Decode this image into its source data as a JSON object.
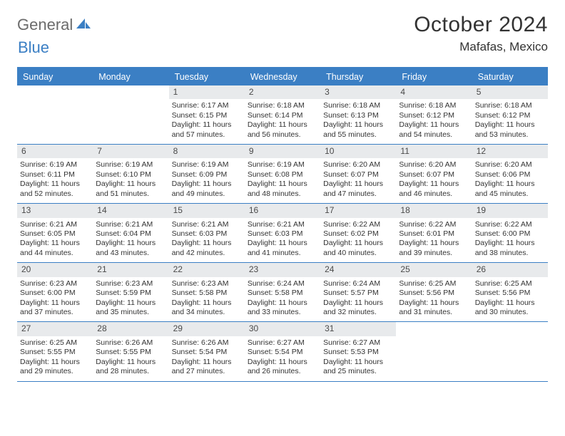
{
  "logo": {
    "part1": "General",
    "part2": "Blue"
  },
  "title": "October 2024",
  "location": "Mafafas, Mexico",
  "day_names": [
    "Sunday",
    "Monday",
    "Tuesday",
    "Wednesday",
    "Thursday",
    "Friday",
    "Saturday"
  ],
  "colors": {
    "accent": "#3b7fc4",
    "header_bg": "#3b7fc4",
    "daynum_bg": "#e8eaec",
    "text": "#333333",
    "logo_gray": "#6b6b6b"
  },
  "weeks": [
    [
      {
        "empty": true
      },
      {
        "empty": true
      },
      {
        "num": "1",
        "sunrise": "Sunrise: 6:17 AM",
        "sunset": "Sunset: 6:15 PM",
        "day1": "Daylight: 11 hours",
        "day2": "and 57 minutes."
      },
      {
        "num": "2",
        "sunrise": "Sunrise: 6:18 AM",
        "sunset": "Sunset: 6:14 PM",
        "day1": "Daylight: 11 hours",
        "day2": "and 56 minutes."
      },
      {
        "num": "3",
        "sunrise": "Sunrise: 6:18 AM",
        "sunset": "Sunset: 6:13 PM",
        "day1": "Daylight: 11 hours",
        "day2": "and 55 minutes."
      },
      {
        "num": "4",
        "sunrise": "Sunrise: 6:18 AM",
        "sunset": "Sunset: 6:12 PM",
        "day1": "Daylight: 11 hours",
        "day2": "and 54 minutes."
      },
      {
        "num": "5",
        "sunrise": "Sunrise: 6:18 AM",
        "sunset": "Sunset: 6:12 PM",
        "day1": "Daylight: 11 hours",
        "day2": "and 53 minutes."
      }
    ],
    [
      {
        "num": "6",
        "sunrise": "Sunrise: 6:19 AM",
        "sunset": "Sunset: 6:11 PM",
        "day1": "Daylight: 11 hours",
        "day2": "and 52 minutes."
      },
      {
        "num": "7",
        "sunrise": "Sunrise: 6:19 AM",
        "sunset": "Sunset: 6:10 PM",
        "day1": "Daylight: 11 hours",
        "day2": "and 51 minutes."
      },
      {
        "num": "8",
        "sunrise": "Sunrise: 6:19 AM",
        "sunset": "Sunset: 6:09 PM",
        "day1": "Daylight: 11 hours",
        "day2": "and 49 minutes."
      },
      {
        "num": "9",
        "sunrise": "Sunrise: 6:19 AM",
        "sunset": "Sunset: 6:08 PM",
        "day1": "Daylight: 11 hours",
        "day2": "and 48 minutes."
      },
      {
        "num": "10",
        "sunrise": "Sunrise: 6:20 AM",
        "sunset": "Sunset: 6:07 PM",
        "day1": "Daylight: 11 hours",
        "day2": "and 47 minutes."
      },
      {
        "num": "11",
        "sunrise": "Sunrise: 6:20 AM",
        "sunset": "Sunset: 6:07 PM",
        "day1": "Daylight: 11 hours",
        "day2": "and 46 minutes."
      },
      {
        "num": "12",
        "sunrise": "Sunrise: 6:20 AM",
        "sunset": "Sunset: 6:06 PM",
        "day1": "Daylight: 11 hours",
        "day2": "and 45 minutes."
      }
    ],
    [
      {
        "num": "13",
        "sunrise": "Sunrise: 6:21 AM",
        "sunset": "Sunset: 6:05 PM",
        "day1": "Daylight: 11 hours",
        "day2": "and 44 minutes."
      },
      {
        "num": "14",
        "sunrise": "Sunrise: 6:21 AM",
        "sunset": "Sunset: 6:04 PM",
        "day1": "Daylight: 11 hours",
        "day2": "and 43 minutes."
      },
      {
        "num": "15",
        "sunrise": "Sunrise: 6:21 AM",
        "sunset": "Sunset: 6:03 PM",
        "day1": "Daylight: 11 hours",
        "day2": "and 42 minutes."
      },
      {
        "num": "16",
        "sunrise": "Sunrise: 6:21 AM",
        "sunset": "Sunset: 6:03 PM",
        "day1": "Daylight: 11 hours",
        "day2": "and 41 minutes."
      },
      {
        "num": "17",
        "sunrise": "Sunrise: 6:22 AM",
        "sunset": "Sunset: 6:02 PM",
        "day1": "Daylight: 11 hours",
        "day2": "and 40 minutes."
      },
      {
        "num": "18",
        "sunrise": "Sunrise: 6:22 AM",
        "sunset": "Sunset: 6:01 PM",
        "day1": "Daylight: 11 hours",
        "day2": "and 39 minutes."
      },
      {
        "num": "19",
        "sunrise": "Sunrise: 6:22 AM",
        "sunset": "Sunset: 6:00 PM",
        "day1": "Daylight: 11 hours",
        "day2": "and 38 minutes."
      }
    ],
    [
      {
        "num": "20",
        "sunrise": "Sunrise: 6:23 AM",
        "sunset": "Sunset: 6:00 PM",
        "day1": "Daylight: 11 hours",
        "day2": "and 37 minutes."
      },
      {
        "num": "21",
        "sunrise": "Sunrise: 6:23 AM",
        "sunset": "Sunset: 5:59 PM",
        "day1": "Daylight: 11 hours",
        "day2": "and 35 minutes."
      },
      {
        "num": "22",
        "sunrise": "Sunrise: 6:23 AM",
        "sunset": "Sunset: 5:58 PM",
        "day1": "Daylight: 11 hours",
        "day2": "and 34 minutes."
      },
      {
        "num": "23",
        "sunrise": "Sunrise: 6:24 AM",
        "sunset": "Sunset: 5:58 PM",
        "day1": "Daylight: 11 hours",
        "day2": "and 33 minutes."
      },
      {
        "num": "24",
        "sunrise": "Sunrise: 6:24 AM",
        "sunset": "Sunset: 5:57 PM",
        "day1": "Daylight: 11 hours",
        "day2": "and 32 minutes."
      },
      {
        "num": "25",
        "sunrise": "Sunrise: 6:25 AM",
        "sunset": "Sunset: 5:56 PM",
        "day1": "Daylight: 11 hours",
        "day2": "and 31 minutes."
      },
      {
        "num": "26",
        "sunrise": "Sunrise: 6:25 AM",
        "sunset": "Sunset: 5:56 PM",
        "day1": "Daylight: 11 hours",
        "day2": "and 30 minutes."
      }
    ],
    [
      {
        "num": "27",
        "sunrise": "Sunrise: 6:25 AM",
        "sunset": "Sunset: 5:55 PM",
        "day1": "Daylight: 11 hours",
        "day2": "and 29 minutes."
      },
      {
        "num": "28",
        "sunrise": "Sunrise: 6:26 AM",
        "sunset": "Sunset: 5:55 PM",
        "day1": "Daylight: 11 hours",
        "day2": "and 28 minutes."
      },
      {
        "num": "29",
        "sunrise": "Sunrise: 6:26 AM",
        "sunset": "Sunset: 5:54 PM",
        "day1": "Daylight: 11 hours",
        "day2": "and 27 minutes."
      },
      {
        "num": "30",
        "sunrise": "Sunrise: 6:27 AM",
        "sunset": "Sunset: 5:54 PM",
        "day1": "Daylight: 11 hours",
        "day2": "and 26 minutes."
      },
      {
        "num": "31",
        "sunrise": "Sunrise: 6:27 AM",
        "sunset": "Sunset: 5:53 PM",
        "day1": "Daylight: 11 hours",
        "day2": "and 25 minutes."
      },
      {
        "empty": true
      },
      {
        "empty": true
      }
    ]
  ]
}
